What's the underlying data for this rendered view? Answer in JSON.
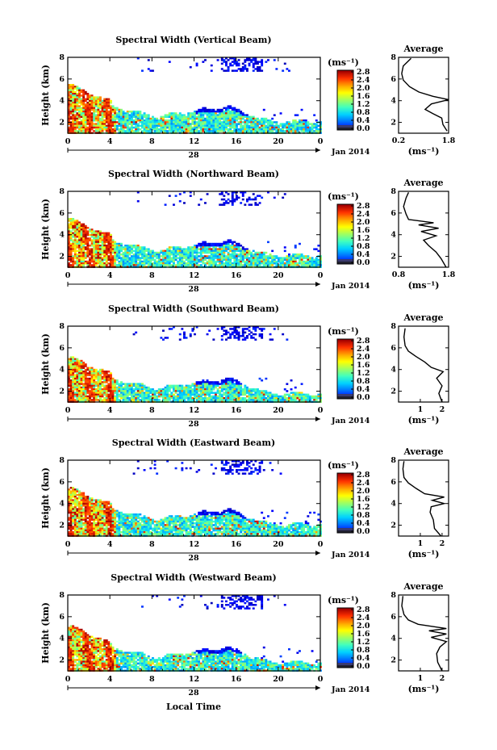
{
  "figure": {
    "xlabel": "Local Time",
    "date_label": "Jan 2014",
    "day_label": "28",
    "ylabel": "Height (km)",
    "x_ticks": [
      "0",
      "4",
      "8",
      "12",
      "16",
      "20",
      "0"
    ],
    "y_ticks": [
      "2",
      "4",
      "6",
      "8"
    ],
    "cbar_unit": "(ms⁻¹)",
    "cbar_ticks": [
      "0.0",
      "0.4",
      "0.8",
      "1.2",
      "1.6",
      "2.0",
      "2.4",
      "2.8"
    ],
    "avg_title": "Average",
    "avg_xlabel": "(ms⁻¹)",
    "avg_yticks": [
      "2",
      "4",
      "6",
      "8"
    ]
  },
  "colors": {
    "jet": [
      "#00008f",
      "#0000ff",
      "#0070ff",
      "#00d0ff",
      "#40ffbf",
      "#a0ff60",
      "#ffff00",
      "#ffa000",
      "#ff3000",
      "#a00000"
    ],
    "cbar_low": "#3a3a70",
    "cbar_base": "#202030"
  },
  "chart_data": [
    {
      "type": "heatmap",
      "title": "Spectral Width (Vertical Beam)",
      "x_range_hours": [
        0,
        24
      ],
      "y_range_km": [
        1,
        8
      ],
      "value_range": [
        0,
        2.8
      ],
      "avg_profile": {
        "xticks": [
          "0.2",
          "1.8"
        ],
        "xlim": [
          0.2,
          1.8
        ],
        "points": [
          [
            1.75,
            1.2
          ],
          [
            1.62,
            1.8
          ],
          [
            1.58,
            2.4
          ],
          [
            1.3,
            2.8
          ],
          [
            1.05,
            3.2
          ],
          [
            1.25,
            3.7
          ],
          [
            1.8,
            4.1
          ],
          [
            1.3,
            4.4
          ],
          [
            0.85,
            4.8
          ],
          [
            0.55,
            5.3
          ],
          [
            0.35,
            5.9
          ],
          [
            0.3,
            6.5
          ],
          [
            0.35,
            7.2
          ],
          [
            0.6,
            7.9
          ]
        ]
      }
    },
    {
      "type": "heatmap",
      "title": "Spectral Width (Northward Beam)",
      "x_range_hours": [
        0,
        24
      ],
      "y_range_km": [
        1,
        8
      ],
      "value_range": [
        0,
        2.8
      ],
      "avg_profile": {
        "xticks": [
          "0.8",
          "1.8"
        ],
        "xlim": [
          0.8,
          1.8
        ],
        "points": [
          [
            1.75,
            1.0
          ],
          [
            1.65,
            1.8
          ],
          [
            1.55,
            2.4
          ],
          [
            1.4,
            3.0
          ],
          [
            1.3,
            3.5
          ],
          [
            1.55,
            3.9
          ],
          [
            1.25,
            4.3
          ],
          [
            1.6,
            4.6
          ],
          [
            1.2,
            4.9
          ],
          [
            1.5,
            5.1
          ],
          [
            1.0,
            5.4
          ],
          [
            0.95,
            5.9
          ],
          [
            0.9,
            6.6
          ],
          [
            0.95,
            7.4
          ],
          [
            1.0,
            7.9
          ]
        ]
      }
    },
    {
      "type": "heatmap",
      "title": "Spectral Width (Southward Beam)",
      "x_range_hours": [
        0,
        24
      ],
      "y_range_km": [
        1,
        8
      ],
      "value_range": [
        0,
        2.8
      ],
      "avg_profile": {
        "xticks": [
          "1",
          "2"
        ],
        "xlim": [
          0,
          2.3
        ],
        "points": [
          [
            2.0,
            1.0
          ],
          [
            1.85,
            1.8
          ],
          [
            2.0,
            2.5
          ],
          [
            1.75,
            3.2
          ],
          [
            2.05,
            3.8
          ],
          [
            1.5,
            4.2
          ],
          [
            1.2,
            4.7
          ],
          [
            0.8,
            5.2
          ],
          [
            0.45,
            5.7
          ],
          [
            0.3,
            6.2
          ],
          [
            0.25,
            7.0
          ],
          [
            0.3,
            7.8
          ]
        ]
      }
    },
    {
      "type": "heatmap",
      "title": "Spectral Width (Eastward Beam)",
      "x_range_hours": [
        0,
        24
      ],
      "y_range_km": [
        1,
        8
      ],
      "value_range": [
        0,
        2.8
      ],
      "avg_profile": {
        "xticks": [
          "1",
          "2"
        ],
        "xlim": [
          0,
          2.3
        ],
        "points": [
          [
            1.95,
            1.0
          ],
          [
            1.65,
            1.7
          ],
          [
            1.6,
            2.5
          ],
          [
            1.45,
            3.2
          ],
          [
            1.5,
            3.7
          ],
          [
            2.1,
            4.0
          ],
          [
            1.55,
            4.3
          ],
          [
            2.1,
            4.6
          ],
          [
            1.2,
            4.9
          ],
          [
            0.8,
            5.4
          ],
          [
            0.45,
            5.9
          ],
          [
            0.25,
            6.4
          ],
          [
            0.2,
            7.2
          ],
          [
            0.25,
            7.9
          ]
        ]
      }
    },
    {
      "type": "heatmap",
      "title": "Spectral Width (Westward Beam)",
      "x_range_hours": [
        0,
        24
      ],
      "y_range_km": [
        1,
        8
      ],
      "value_range": [
        0,
        2.8
      ],
      "avg_profile": {
        "xticks": [
          "1",
          "2"
        ],
        "xlim": [
          0,
          2.3
        ],
        "points": [
          [
            2.0,
            1.0
          ],
          [
            1.8,
            1.8
          ],
          [
            1.75,
            2.6
          ],
          [
            1.9,
            3.2
          ],
          [
            2.2,
            3.7
          ],
          [
            1.5,
            4.1
          ],
          [
            2.2,
            4.4
          ],
          [
            1.4,
            4.7
          ],
          [
            2.2,
            4.9
          ],
          [
            0.9,
            5.3
          ],
          [
            0.45,
            5.7
          ],
          [
            0.25,
            6.2
          ],
          [
            0.15,
            7.0
          ],
          [
            0.2,
            7.9
          ]
        ]
      }
    }
  ]
}
